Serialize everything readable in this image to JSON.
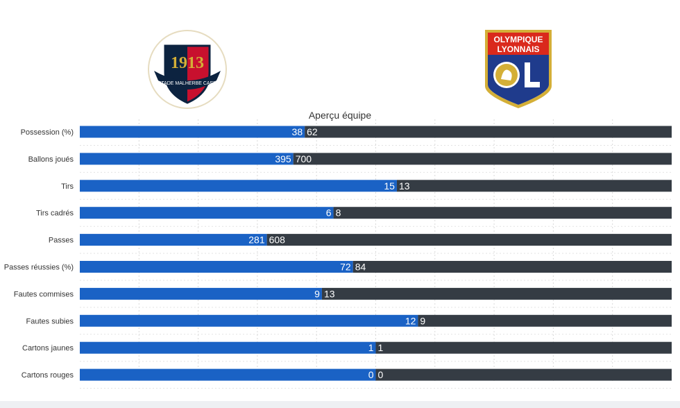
{
  "chart_data": {
    "type": "bar",
    "title": "Aperçu équipe",
    "categories": [
      "Possession (%)",
      "Ballons joués",
      "Tirs",
      "Tirs cadrés",
      "Passes",
      "Passes réussies (%)",
      "Fautes commises",
      "Fautes subies",
      "Cartons jaunes",
      "Cartons rouges"
    ],
    "series": [
      {
        "values": [
          38,
          395,
          15,
          6,
          281,
          72,
          9,
          12,
          1,
          0
        ],
        "color": "#1a62c5"
      },
      {
        "values": [
          62,
          700,
          13,
          8,
          608,
          84,
          13,
          9,
          1,
          0
        ],
        "color": "#353c44"
      }
    ],
    "stacked": true,
    "normalized_to_100_percent": true,
    "orientation": "horizontal",
    "grid": true,
    "legend": "none"
  },
  "logos": {
    "home": {
      "icon": "stade-malherbe-caen-crest",
      "year_text": "1913",
      "ring_text": "STADE MALHERBE CAEN"
    },
    "away": {
      "icon": "olympique-lyonnais-crest",
      "text_line1": "OLYMPIQUE",
      "text_line2": "LYONNAIS"
    }
  }
}
